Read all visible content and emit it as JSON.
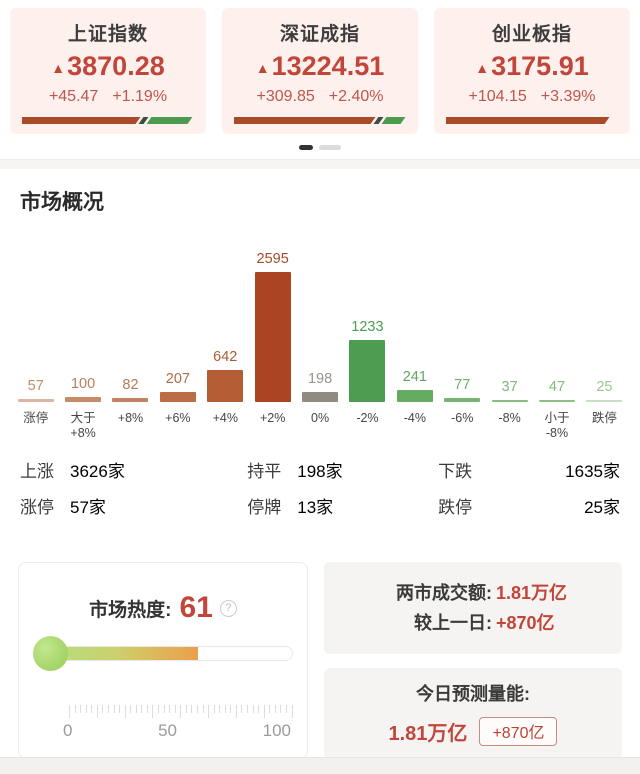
{
  "indices": [
    {
      "name": "上证指数",
      "arrow": "▲",
      "value": "3870.28",
      "change": "+45.47",
      "change_pct": "+1.19%",
      "up_pct": 70,
      "down_pct": 24
    },
    {
      "name": "深证成指",
      "arrow": "▲",
      "value": "13224.51",
      "change": "+309.85",
      "change_pct": "+2.40%",
      "up_pct": 83,
      "down_pct": 11
    },
    {
      "name": "创业板指",
      "arrow": "▲",
      "value": "3175.91",
      "change": "+104.15",
      "change_pct": "+3.39%",
      "up_pct": 96,
      "down_pct": 0
    }
  ],
  "pagination": {
    "count": 2,
    "active_index": 0
  },
  "section_title": "市场概况",
  "chart_data": {
    "type": "bar",
    "title": "市场概况",
    "categories": [
      "涨停",
      "大于\n+8%",
      "+8%",
      "+6%",
      "+4%",
      "+2%",
      "0%",
      "-2%",
      "-4%",
      "-6%",
      "-8%",
      "小于\n-8%",
      "跌停"
    ],
    "values": [
      57,
      100,
      82,
      207,
      642,
      2595,
      198,
      1233,
      241,
      77,
      37,
      47,
      25
    ],
    "bar_colors": [
      "#dcb5a4",
      "#c88b68",
      "#c2815f",
      "#bb6d46",
      "#b45c34",
      "#ab4423",
      "#8f8b80",
      "#4e9c52",
      "#64aa61",
      "#77b471",
      "#88bd7e",
      "#8fc083",
      "#c6dfc0"
    ],
    "label_colors": [
      "#c08a6b",
      "#b97f5d",
      "#b77a55",
      "#b06b42",
      "#aa5c33",
      "#a54a25",
      "#97948b",
      "#4e9c52",
      "#5fa75e",
      "#6fb06a",
      "#7fb978",
      "#83bb7c",
      "#97c891"
    ],
    "xlabel": "",
    "ylabel": "",
    "ylim": [
      0,
      2595
    ],
    "grid": false,
    "legend": false
  },
  "summary": {
    "rows": [
      {
        "label": "上涨",
        "value": "3626家",
        "color": "#c2453a"
      },
      {
        "label": "持平",
        "value": "198家",
        "color": "#9a988f"
      },
      {
        "label": "下跌",
        "value": "1635家",
        "color": "#53a257"
      },
      {
        "label": "涨停",
        "value": "57家",
        "color": "#c2453a"
      },
      {
        "label": "停牌",
        "value": "13家",
        "color": "#3a3a3a"
      },
      {
        "label": "跌停",
        "value": "25家",
        "color": "#53a257"
      }
    ]
  },
  "heat": {
    "title": "市场热度:",
    "value": "61",
    "percent": 61,
    "scale": [
      "0",
      "50",
      "100"
    ],
    "help_icon": "?"
  },
  "turnover": {
    "rows": [
      {
        "label": "两市成交额:",
        "value": "1.81万亿"
      },
      {
        "label": "较上一日:",
        "value": "+870亿"
      }
    ]
  },
  "forecast": {
    "title": "今日预测量能:",
    "value": "1.81万亿",
    "badge": "+870亿"
  },
  "colors": {
    "accent_red": "#c2453a",
    "up_bar": "#a94a28",
    "down_bar": "#4d9b4f",
    "index_card_bg": "#fdf0ed"
  }
}
